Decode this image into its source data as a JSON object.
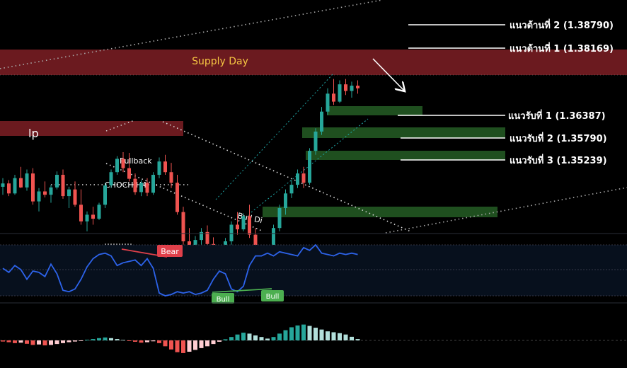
{
  "chart_data": {
    "type": "candlestick",
    "zones": {
      "supply_day_label": "Supply Day",
      "lp_label": "lp"
    },
    "levels": [
      {
        "label": "แนวต้านที่ 2 (1.38790)",
        "kind": "resistance",
        "value": 1.3879
      },
      {
        "label": "แนวต้านที่ 1 (1.38169)",
        "kind": "resistance",
        "value": 1.38169
      },
      {
        "label": "แนวรับที่ 1 (1.36387)",
        "kind": "support",
        "value": 1.36387
      },
      {
        "label": "แนวรับที่ 2 (1.35790)",
        "kind": "support",
        "value": 1.3579
      },
      {
        "label": "แนวรับที่ 3 (1.35239)",
        "kind": "support",
        "value": 1.35239
      }
    ],
    "annotations": {
      "pullback": "Pullback",
      "choch": "CHOCH H4",
      "bull_div": "Bull Di"
    },
    "oscillator": {
      "bear_tag": "Bear",
      "bull_tag_1": "Bull",
      "bull_tag_2": "Bull"
    },
    "price_candles": [
      [
        1.3642,
        1.3655,
        1.363,
        1.3647
      ],
      [
        1.3647,
        1.3652,
        1.3628,
        1.3632
      ],
      [
        1.3632,
        1.366,
        1.363,
        1.3655
      ],
      [
        1.3655,
        1.3672,
        1.364,
        1.3641
      ],
      [
        1.3641,
        1.3668,
        1.3636,
        1.3662
      ],
      [
        1.3662,
        1.367,
        1.3615,
        1.362
      ],
      [
        1.362,
        1.364,
        1.3605,
        1.3635
      ],
      [
        1.3635,
        1.365,
        1.3626,
        1.363
      ],
      [
        1.363,
        1.3645,
        1.3618,
        1.3641
      ],
      [
        1.3641,
        1.3665,
        1.3638,
        1.366
      ],
      [
        1.366,
        1.3668,
        1.3624,
        1.3628
      ],
      [
        1.3628,
        1.3642,
        1.361,
        1.3638
      ],
      [
        1.3638,
        1.365,
        1.3612,
        1.3615
      ],
      [
        1.3615,
        1.3638,
        1.3585,
        1.359
      ],
      [
        1.359,
        1.3605,
        1.3575,
        1.36
      ],
      [
        1.36,
        1.3612,
        1.3585,
        1.3594
      ],
      [
        1.3594,
        1.3618,
        1.3592,
        1.3615
      ],
      [
        1.3615,
        1.3648,
        1.361,
        1.3644
      ],
      [
        1.3644,
        1.3668,
        1.364,
        1.3664
      ],
      [
        1.3664,
        1.3688,
        1.366,
        1.3684
      ],
      [
        1.3684,
        1.3694,
        1.3664,
        1.367
      ],
      [
        1.367,
        1.3693,
        1.365,
        1.3654
      ],
      [
        1.3654,
        1.3662,
        1.363,
        1.3634
      ],
      [
        1.3634,
        1.3652,
        1.3628,
        1.3648
      ],
      [
        1.3648,
        1.3655,
        1.3628,
        1.3633
      ],
      [
        1.3633,
        1.3664,
        1.363,
        1.366
      ],
      [
        1.366,
        1.3686,
        1.3655,
        1.368
      ],
      [
        1.368,
        1.369,
        1.366,
        1.3664
      ],
      [
        1.3664,
        1.3678,
        1.364,
        1.3648
      ],
      [
        1.3648,
        1.366,
        1.36,
        1.3604
      ],
      [
        1.3604,
        1.3612,
        1.3555,
        1.356
      ],
      [
        1.356,
        1.358,
        1.3548,
        1.3552
      ],
      [
        1.3552,
        1.3568,
        1.354,
        1.3562
      ],
      [
        1.3562,
        1.358,
        1.3555,
        1.3574
      ],
      [
        1.3574,
        1.3584,
        1.355,
        1.3556
      ],
      [
        1.3556,
        1.3566,
        1.3528,
        1.3534
      ],
      [
        1.3534,
        1.3548,
        1.3515,
        1.354
      ],
      [
        1.354,
        1.3565,
        1.3535,
        1.356
      ],
      [
        1.356,
        1.359,
        1.3555,
        1.3585
      ],
      [
        1.3585,
        1.3604,
        1.357,
        1.3578
      ],
      [
        1.3578,
        1.3602,
        1.3575,
        1.3598
      ],
      [
        1.3598,
        1.3615,
        1.3565,
        1.357
      ],
      [
        1.357,
        1.358,
        1.354,
        1.3546
      ],
      [
        1.3546,
        1.3552,
        1.3525,
        1.353
      ],
      [
        1.353,
        1.3548,
        1.3514,
        1.352
      ],
      [
        1.352,
        1.3585,
        1.3518,
        1.358
      ],
      [
        1.358,
        1.3615,
        1.3575,
        1.361
      ],
      [
        1.361,
        1.3638,
        1.36,
        1.3632
      ],
      [
        1.3632,
        1.3652,
        1.3625,
        1.3645
      ],
      [
        1.3645,
        1.3668,
        1.364,
        1.3662
      ],
      [
        1.3662,
        1.3672,
        1.364,
        1.3648
      ],
      [
        1.3648,
        1.37,
        1.3645,
        1.3696
      ],
      [
        1.3696,
        1.373,
        1.369,
        1.3725
      ],
      [
        1.3725,
        1.3762,
        1.372,
        1.3755
      ],
      [
        1.3755,
        1.379,
        1.375,
        1.3782
      ],
      [
        1.3782,
        1.3804,
        1.3765,
        1.377
      ],
      [
        1.377,
        1.3802,
        1.3768,
        1.3796
      ],
      [
        1.3796,
        1.3804,
        1.378,
        1.3786
      ],
      [
        1.3786,
        1.38,
        1.3776,
        1.3794
      ],
      [
        1.3794,
        1.3802,
        1.3782,
        1.379
      ]
    ],
    "oscillator_values": [
      45,
      42,
      47,
      44,
      37,
      43,
      42,
      39,
      48,
      41,
      29,
      28,
      30,
      37,
      46,
      52,
      55,
      56,
      54,
      47,
      49,
      50,
      51,
      47,
      52,
      45,
      27,
      25,
      26,
      28,
      27,
      28,
      26,
      27,
      29,
      37,
      43,
      41,
      30,
      28,
      32,
      47,
      54,
      54,
      56,
      54,
      57,
      56,
      55,
      54,
      60,
      58,
      62,
      56,
      55,
      54,
      56,
      55,
      56,
      55
    ],
    "histogram_values": [
      -0.5,
      -0.8,
      -1.2,
      -1.0,
      -1.5,
      -2.0,
      -1.8,
      -2.2,
      -2.0,
      -1.6,
      -1.2,
      -0.8,
      -0.5,
      -0.3,
      0.3,
      0.6,
      1.0,
      1.3,
      1.0,
      0.6,
      0.2,
      -0.3,
      -0.6,
      -1.0,
      -0.8,
      -0.4,
      -1.2,
      -2.6,
      -4.0,
      -5.2,
      -5.6,
      -5.0,
      -4.2,
      -3.4,
      -2.6,
      -1.6,
      -0.6,
      0.5,
      1.5,
      2.6,
      3.4,
      3.0,
      2.2,
      1.5,
      0.8,
      1.5,
      3.0,
      4.5,
      5.8,
      6.6,
      7.0,
      6.4,
      5.6,
      4.8,
      4.0,
      3.6,
      3.2,
      2.6,
      1.6,
      0.6
    ]
  }
}
